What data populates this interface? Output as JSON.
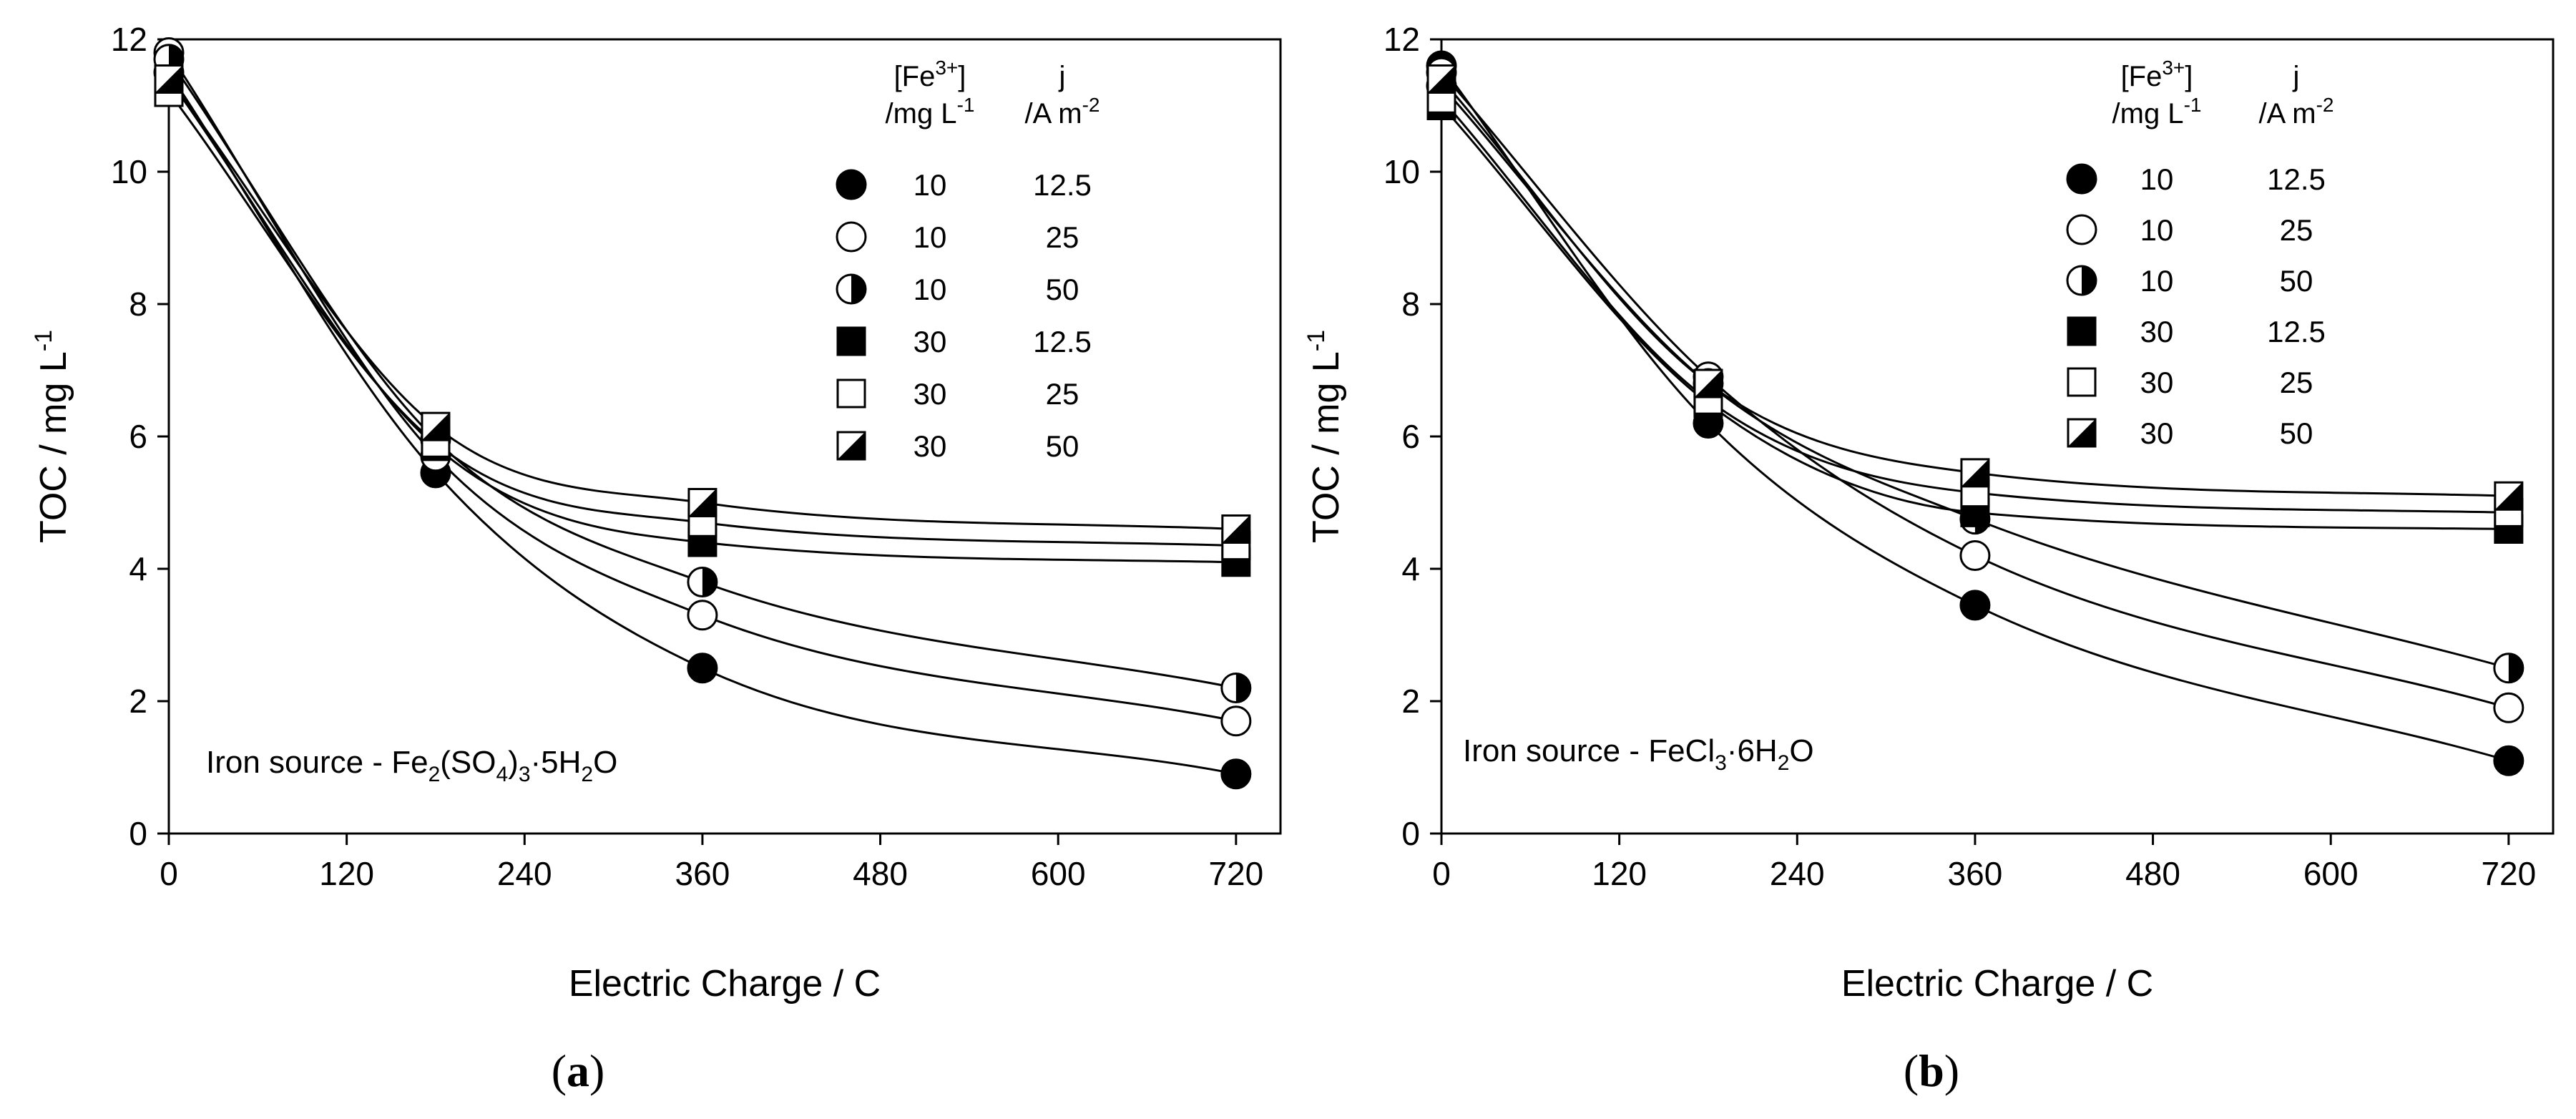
{
  "chart_data": [
    {
      "id": "a",
      "type": "line",
      "panel_label": "a",
      "xlabel": "Electric Charge / C",
      "ylabel": "TOC / mg L",
      "ylabel_sup": "-1",
      "xlim": [
        0,
        750
      ],
      "ylim": [
        0,
        12
      ],
      "xticks": [
        0,
        120,
        240,
        360,
        480,
        600,
        720
      ],
      "yticks": [
        0,
        2,
        4,
        6,
        8,
        10,
        12
      ],
      "x": [
        0,
        180,
        360,
        720
      ],
      "annotation": {
        "prefix": "Iron source - Fe",
        "s1": "2",
        "mid1": "(SO",
        "s2": "4",
        "mid2": ")",
        "s3": "3",
        "dot": "·",
        "mid3": "5H",
        "s4": "2",
        "suffix": "O"
      },
      "series": [
        {
          "name": "10 mg/L, 12.5 A/m2",
          "marker": "circle",
          "fill": "full",
          "fe": "10",
          "j": "12.5",
          "values": [
            11.5,
            5.45,
            2.5,
            0.9
          ]
        },
        {
          "name": "10 mg/L, 25 A/m2",
          "marker": "circle",
          "fill": "none",
          "fe": "10",
          "j": "25",
          "values": [
            11.8,
            5.7,
            3.3,
            1.7
          ]
        },
        {
          "name": "10 mg/L, 50 A/m2",
          "marker": "circle",
          "fill": "half",
          "fe": "10",
          "j": "50",
          "values": [
            11.7,
            5.95,
            3.8,
            2.2
          ]
        },
        {
          "name": "30 mg/L, 12.5 A/m2",
          "marker": "square",
          "fill": "full",
          "fe": "30",
          "j": "12.5",
          "values": [
            11.4,
            5.85,
            4.4,
            4.1
          ]
        },
        {
          "name": "30 mg/L, 25 A/m2",
          "marker": "square",
          "fill": "none",
          "fe": "30",
          "j": "25",
          "values": [
            11.2,
            5.9,
            4.7,
            4.35
          ]
        },
        {
          "name": "30 mg/L, 50 A/m2",
          "marker": "square",
          "fill": "diag",
          "fe": "30",
          "j": "50",
          "values": [
            11.4,
            6.15,
            5.0,
            4.6
          ]
        }
      ]
    },
    {
      "id": "b",
      "type": "line",
      "panel_label": "b",
      "xlabel": "Electric Charge / C",
      "ylabel": "TOC / mg L",
      "ylabel_sup": "-1",
      "xlim": [
        0,
        750
      ],
      "ylim": [
        0,
        12
      ],
      "xticks": [
        0,
        120,
        240,
        360,
        480,
        600,
        720
      ],
      "yticks": [
        0,
        2,
        4,
        6,
        8,
        10,
        12
      ],
      "x": [
        0,
        180,
        360,
        720
      ],
      "annotation": {
        "prefix": "Iron source - FeCl",
        "s1": "3",
        "dot": "·",
        "mid": "6H",
        "s2": "2",
        "suffix": "O"
      },
      "series": [
        {
          "name": "10 mg/L, 12.5 A/m2",
          "marker": "circle",
          "fill": "full",
          "fe": "10",
          "j": "12.5",
          "values": [
            11.6,
            6.2,
            3.45,
            1.1
          ]
        },
        {
          "name": "10 mg/L, 25 A/m2",
          "marker": "circle",
          "fill": "none",
          "fe": "10",
          "j": "25",
          "values": [
            11.5,
            6.9,
            4.2,
            1.9
          ]
        },
        {
          "name": "10 mg/L, 50 A/m2",
          "marker": "circle",
          "fill": "half",
          "fe": "10",
          "j": "50",
          "values": [
            11.3,
            6.8,
            4.75,
            2.5
          ]
        },
        {
          "name": "30 mg/L, 12.5 A/m2",
          "marker": "square",
          "fill": "full",
          "fe": "30",
          "j": "12.5",
          "values": [
            11.0,
            6.5,
            4.85,
            4.6
          ]
        },
        {
          "name": "30 mg/L, 25 A/m2",
          "marker": "square",
          "fill": "none",
          "fe": "30",
          "j": "25",
          "values": [
            11.1,
            6.55,
            5.15,
            4.85
          ]
        },
        {
          "name": "30 mg/L, 50 A/m2",
          "marker": "square",
          "fill": "diag",
          "fe": "30",
          "j": "50",
          "values": [
            11.4,
            6.8,
            5.45,
            5.1
          ]
        }
      ]
    }
  ],
  "legend": {
    "fe_header_line1_pre": "[Fe",
    "fe_header_sup": "3+",
    "fe_header_line1_post": "]",
    "fe_header_line2_pre": "/mg L",
    "fe_header_line2_sup": "-1",
    "j_header_line1": "j",
    "j_header_line2_pre": "/A m",
    "j_header_line2_sup": "-2"
  }
}
